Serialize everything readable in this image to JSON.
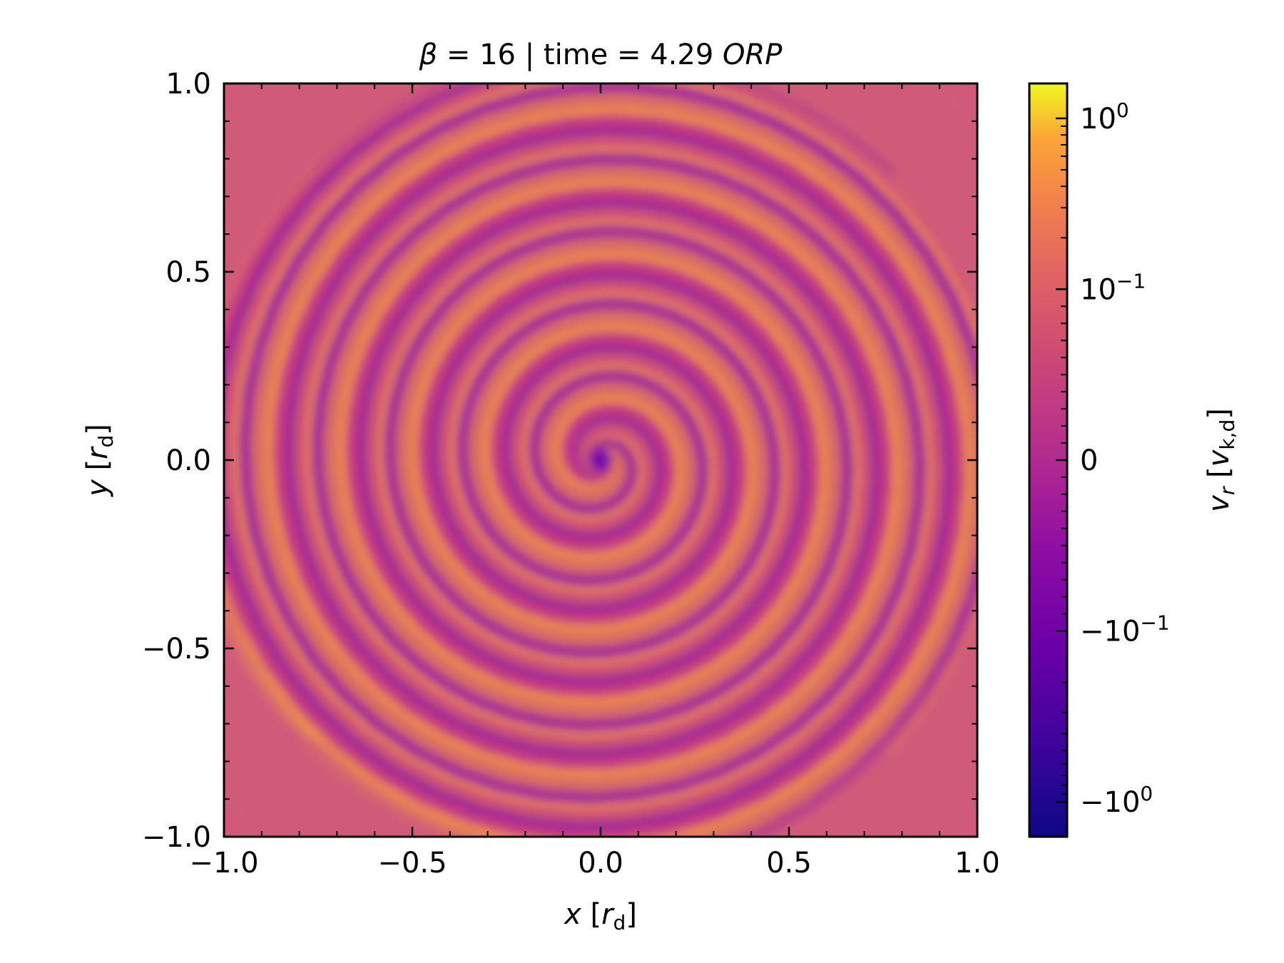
{
  "chart_data": {
    "type": "heatmap",
    "title": {
      "beta_symbol": "β",
      "beta_text": " = 16 | time = 4.29 ",
      "unit": "ORP"
    },
    "xlabel": {
      "var": "x",
      "open": " [",
      "sym": "r",
      "sub": "d",
      "close": "]"
    },
    "ylabel": {
      "var": "y",
      "open": " [",
      "sym": "r",
      "sub": "d",
      "close": "]"
    },
    "xlim": [
      -1.0,
      1.0
    ],
    "ylim": [
      -1.0,
      1.0
    ],
    "xticks": [
      -1.0,
      -0.5,
      0.0,
      0.5,
      1.0
    ],
    "yticks": [
      -1.0,
      -0.5,
      0.0,
      0.5,
      1.0
    ],
    "xtick_labels": [
      "−1.0",
      "−0.5",
      "0.0",
      "0.5",
      "1.0"
    ],
    "ytick_labels": [
      "−1.0",
      "−0.5",
      "0.0",
      "0.5",
      "1.0"
    ],
    "colorbar": {
      "label": {
        "sym": "v",
        "sub_r": "r",
        "open": " [",
        "vsym": "v",
        "vsub": "k,d",
        "close": "]"
      },
      "scale": "symlog",
      "cmap": "plasma",
      "range": [
        -1.6,
        1.6
      ],
      "ticks": [
        {
          "value": 1.0,
          "base": "10",
          "exp": "0",
          "sign": ""
        },
        {
          "value": 0.1,
          "base": "10",
          "exp": "−1",
          "sign": ""
        },
        {
          "value": 0,
          "base": "0",
          "exp": "",
          "sign": ""
        },
        {
          "value": -0.1,
          "base": "10",
          "exp": "−1",
          "sign": "−"
        },
        {
          "value": -1.0,
          "base": "10",
          "exp": "0",
          "sign": "−"
        }
      ]
    },
    "field_description": "radial velocity map with spiral structure centered at origin",
    "grid": false
  }
}
